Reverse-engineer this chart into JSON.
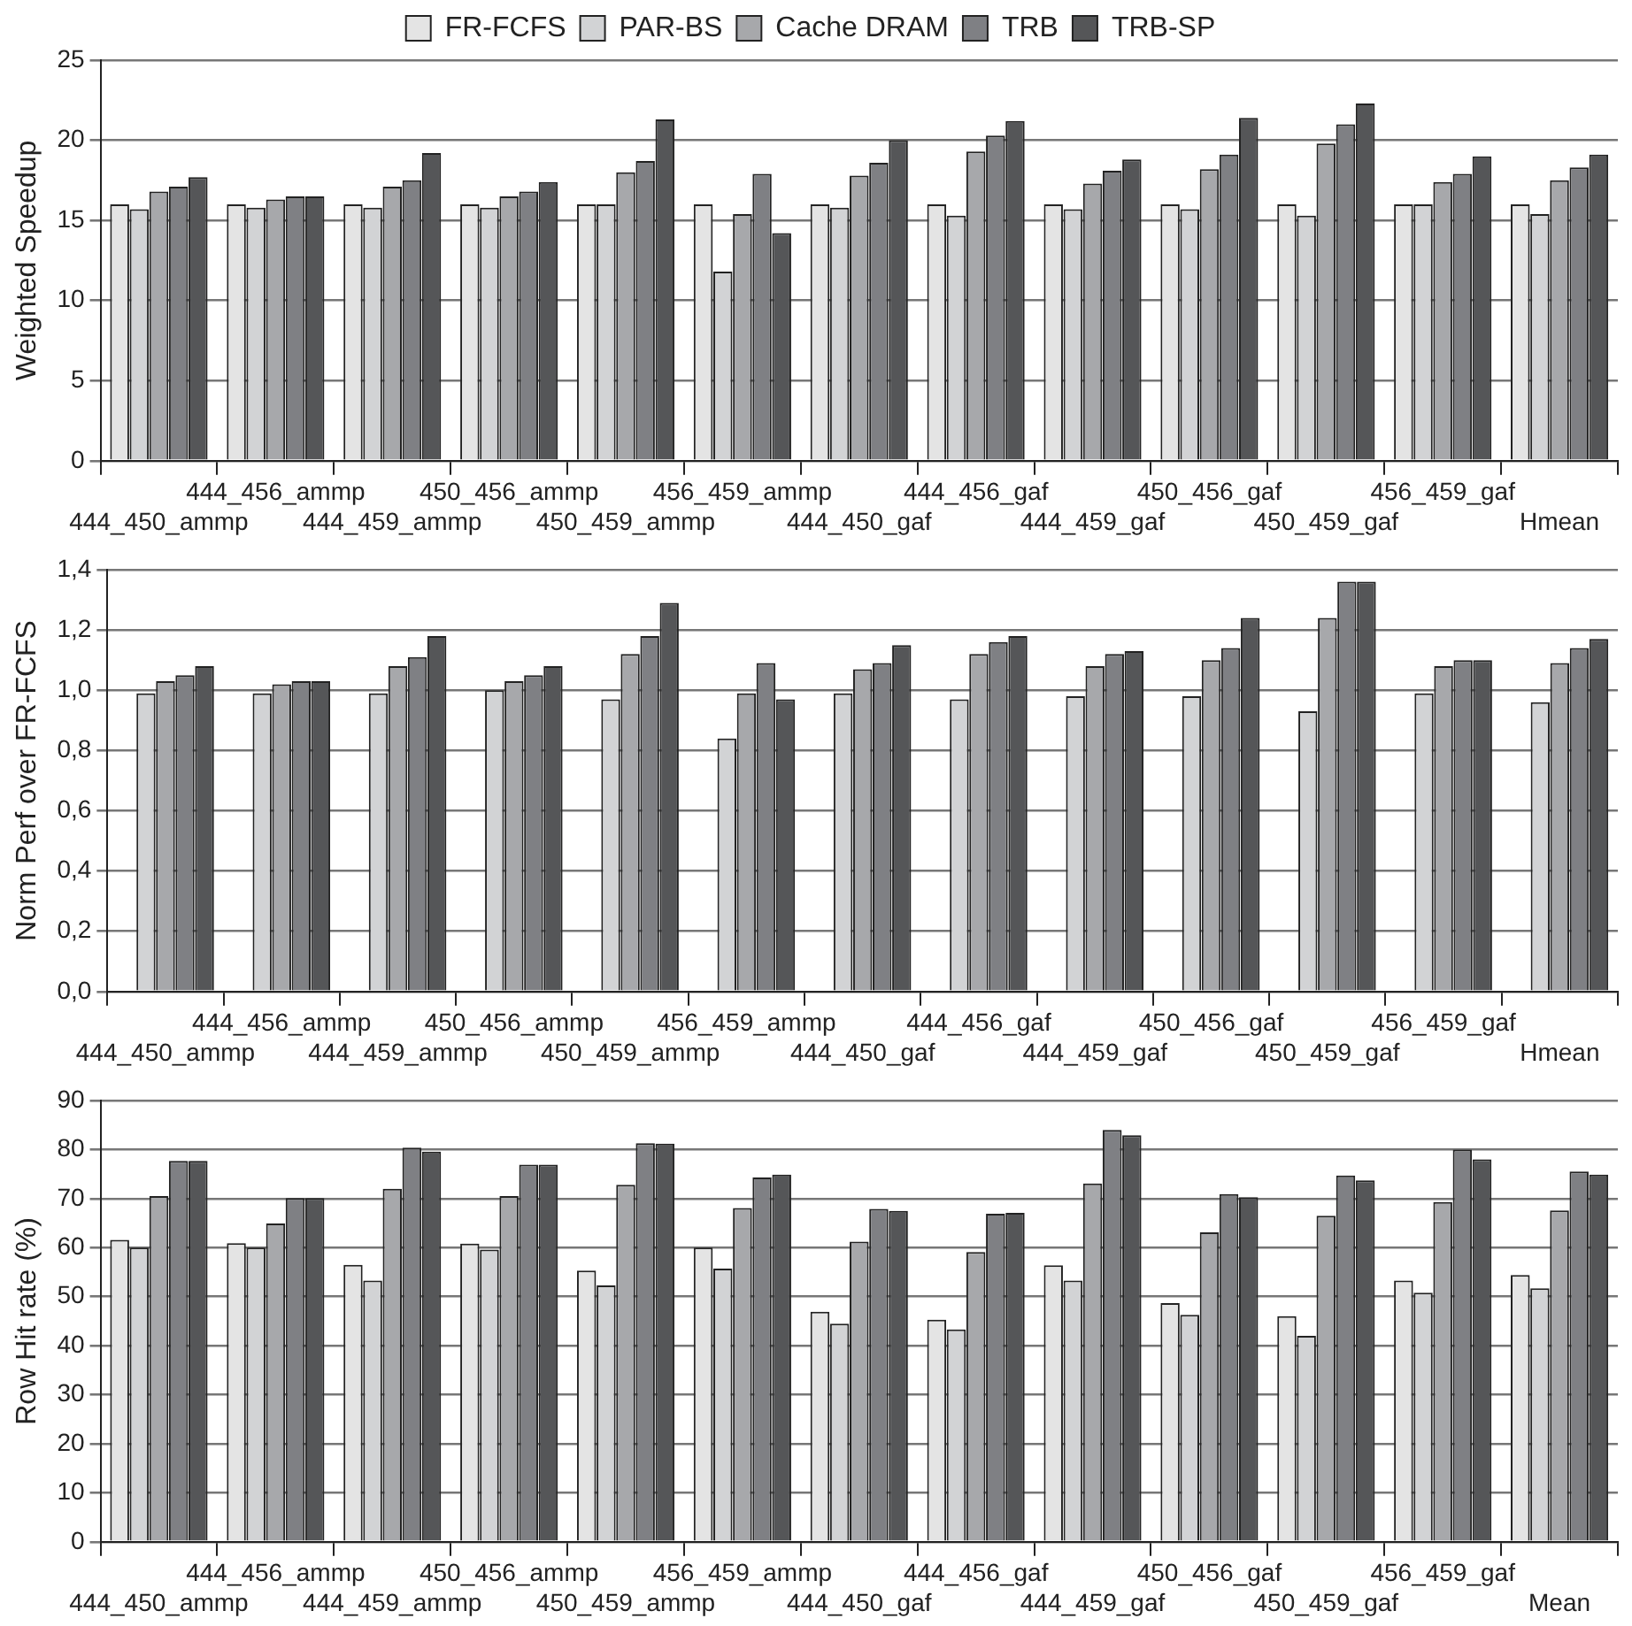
{
  "chart_data": [
    {
      "type": "bar",
      "ylabel": "Weighted Speedup",
      "legend": "top",
      "grid": "y",
      "categories": [
        "444_450_ammp",
        "444_456_ammp",
        "444_459_ammp",
        "450_456_ammp",
        "450_459_ammp",
        "456_459_ammp",
        "444_450_gaf",
        "444_456_gaf",
        "444_459_gaf",
        "450_456_gaf",
        "450_459_gaf",
        "456_459_gaf",
        "Hmean"
      ],
      "ylim": [
        0,
        25
      ],
      "yticks": [
        0,
        5,
        10,
        15,
        20,
        25
      ],
      "series": [
        {
          "name": "FR-FCFS",
          "color": "#e4e4e4",
          "values": [
            16.0,
            16.0,
            16.0,
            16.0,
            16.0,
            16.0,
            16.0,
            16.0,
            16.0,
            16.0,
            16.0,
            16.0,
            16.0
          ]
        },
        {
          "name": "PAR-BS",
          "color": "#d2d3d5",
          "values": [
            15.7,
            15.8,
            15.8,
            15.8,
            16.0,
            11.8,
            15.8,
            15.3,
            15.7,
            15.7,
            15.3,
            16.0,
            15.4
          ]
        },
        {
          "name": "Cache DRAM",
          "color": "#a7a8ab",
          "values": [
            16.8,
            16.3,
            17.1,
            16.5,
            18.0,
            15.4,
            17.8,
            19.3,
            17.3,
            18.2,
            19.8,
            17.4,
            17.5
          ]
        },
        {
          "name": "TRB",
          "color": "#7f8084",
          "values": [
            17.1,
            16.5,
            17.5,
            16.8,
            18.7,
            17.9,
            18.6,
            20.3,
            18.1,
            19.1,
            21.0,
            17.9,
            18.3
          ]
        },
        {
          "name": "TRB-SP",
          "color": "#555658",
          "values": [
            17.7,
            16.5,
            19.2,
            17.4,
            21.3,
            14.2,
            20.0,
            21.2,
            18.8,
            21.4,
            22.3,
            19.0,
            19.1
          ]
        }
      ]
    },
    {
      "type": "bar",
      "ylabel": "Norm Perf over FR-FCFS",
      "grid": "y",
      "categories": [
        "444_450_ammp",
        "444_456_ammp",
        "444_459_ammp",
        "450_456_ammp",
        "450_459_ammp",
        "456_459_ammp",
        "444_450_gaf",
        "444_456_gaf",
        "444_459_gaf",
        "450_456_gaf",
        "450_459_gaf",
        "456_459_gaf",
        "Hmean"
      ],
      "ylim": [
        0,
        1.4
      ],
      "yticks": [
        {
          "value": 0,
          "label": "0,0"
        },
        {
          "value": 0.2,
          "label": "0,2"
        },
        {
          "value": 0.4,
          "label": "0,4"
        },
        {
          "value": 0.6,
          "label": "0,6"
        },
        {
          "value": 0.8,
          "label": "0,8"
        },
        {
          "value": 1.0,
          "label": "1,0"
        },
        {
          "value": 1.2,
          "label": "1,2"
        },
        {
          "value": 1.4,
          "label": "1,4"
        }
      ],
      "series": [
        {
          "color": "#e4e4e4",
          "values": [
            null,
            null,
            null,
            null,
            null,
            null,
            null,
            null,
            null,
            null,
            null,
            null,
            null
          ]
        },
        {
          "color": "#d2d3d5",
          "values": [
            0.99,
            0.99,
            0.99,
            1.0,
            0.97,
            0.84,
            0.99,
            0.97,
            0.98,
            0.98,
            0.93,
            0.99,
            0.96
          ]
        },
        {
          "color": "#a7a8ab",
          "values": [
            1.03,
            1.02,
            1.08,
            1.03,
            1.12,
            0.99,
            1.07,
            1.12,
            1.08,
            1.1,
            1.24,
            1.08,
            1.09
          ]
        },
        {
          "color": "#7f8084",
          "values": [
            1.05,
            1.03,
            1.11,
            1.05,
            1.18,
            1.09,
            1.09,
            1.16,
            1.12,
            1.14,
            1.36,
            1.1,
            1.14
          ]
        },
        {
          "color": "#555658",
          "values": [
            1.08,
            1.03,
            1.18,
            1.08,
            1.29,
            0.97,
            1.15,
            1.18,
            1.13,
            1.24,
            1.36,
            1.1,
            1.17
          ]
        }
      ]
    },
    {
      "type": "bar",
      "ylabel": "Row Hit rate (%)",
      "grid": "y",
      "categories": [
        "444_450_ammp",
        "444_456_ammp",
        "444_459_ammp",
        "450_456_ammp",
        "450_459_ammp",
        "456_459_ammp",
        "444_450_gaf",
        "444_456_gaf",
        "444_459_gaf",
        "450_456_gaf",
        "450_459_gaf",
        "456_459_gaf",
        "Mean"
      ],
      "ylim": [
        0,
        90
      ],
      "yticks": [
        0,
        10,
        20,
        30,
        40,
        50,
        60,
        70,
        80,
        90
      ],
      "series": [
        {
          "color": "#e4e4e4",
          "values": [
            61.6,
            60.9,
            56.5,
            60.8,
            55.3,
            60.0,
            46.9,
            45.3,
            56.4,
            48.7,
            46.0,
            53.3,
            54.4
          ]
        },
        {
          "color": "#d2d3d5",
          "values": [
            60.0,
            60.0,
            53.3,
            59.6,
            52.3,
            55.7,
            44.5,
            43.3,
            53.3,
            46.3,
            42.0,
            50.8,
            51.7
          ]
        },
        {
          "color": "#a7a8ab",
          "values": [
            70.5,
            64.9,
            72.0,
            70.5,
            72.8,
            68.1,
            61.2,
            59.1,
            73.1,
            63.1,
            66.5,
            69.3,
            67.6
          ]
        },
        {
          "color": "#7f8084",
          "values": [
            77.7,
            70.1,
            80.4,
            76.9,
            81.3,
            74.3,
            67.9,
            66.9,
            84.0,
            70.9,
            74.7,
            80.0,
            75.5
          ]
        },
        {
          "color": "#555658",
          "values": [
            77.7,
            70.1,
            79.6,
            76.9,
            81.2,
            74.9,
            67.5,
            67.1,
            82.9,
            70.3,
            73.7,
            78.0,
            74.9
          ]
        }
      ]
    }
  ]
}
